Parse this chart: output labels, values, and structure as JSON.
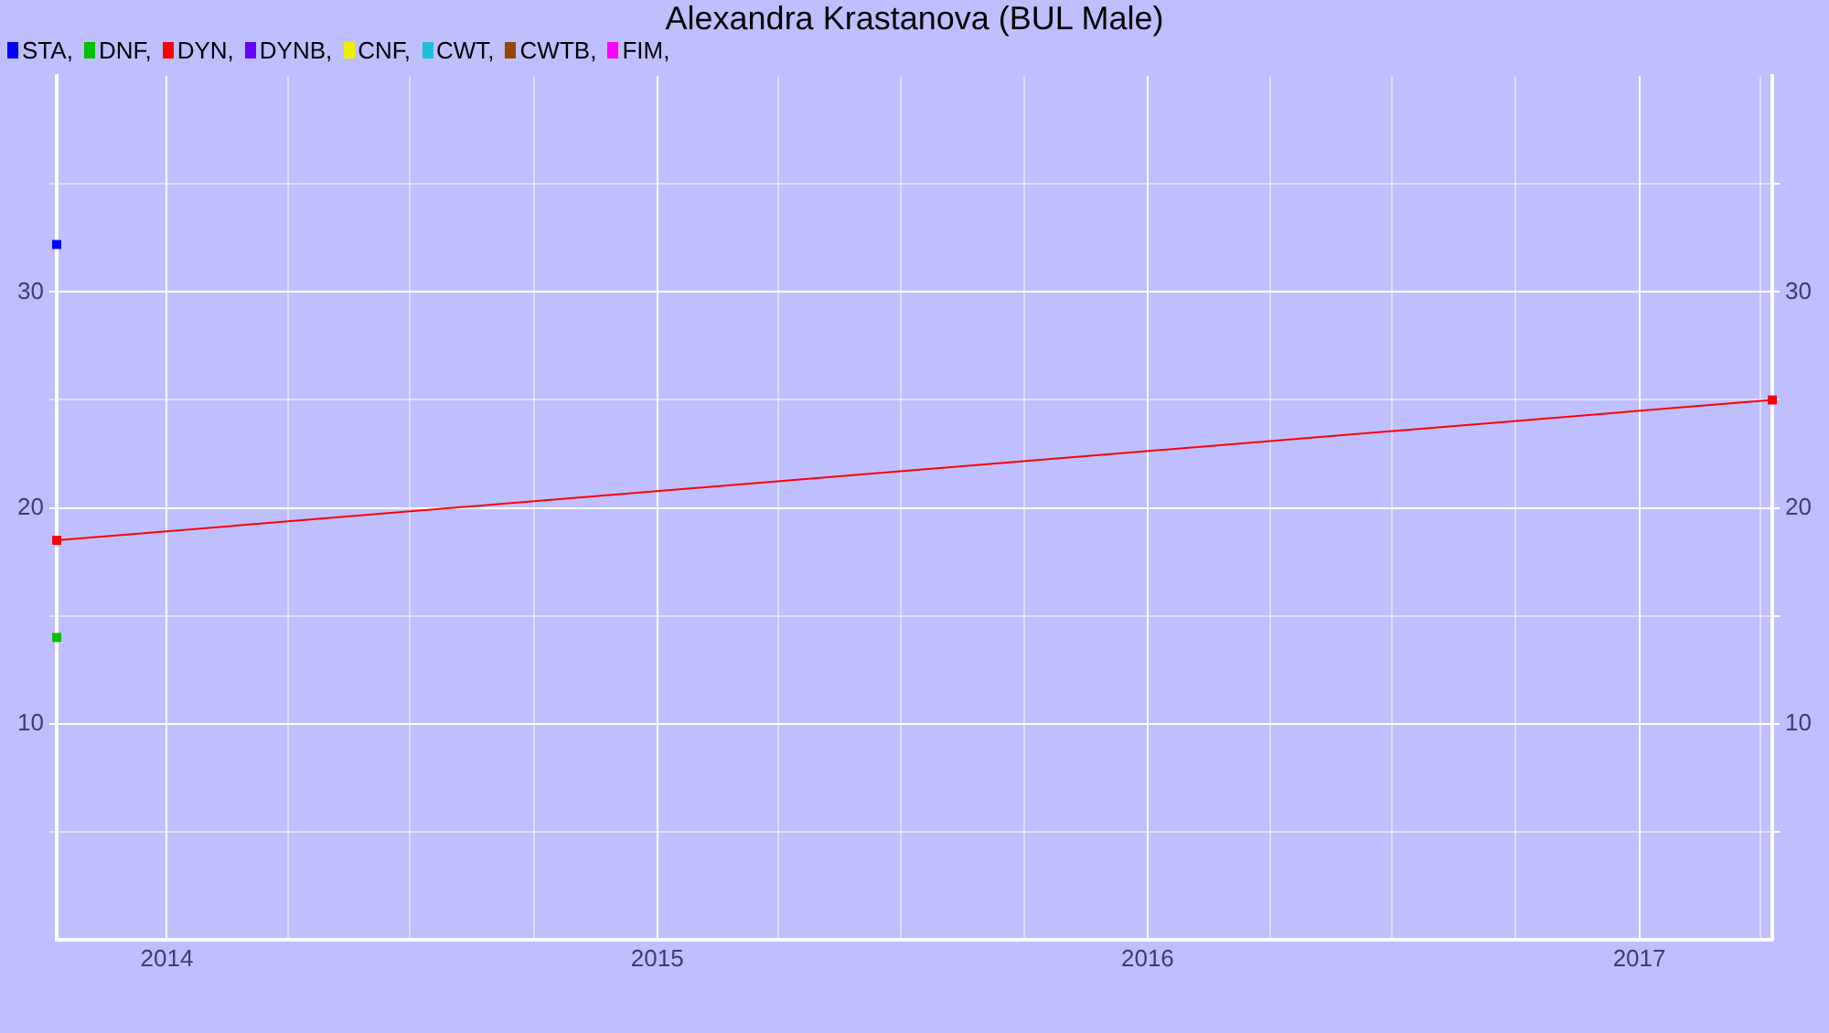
{
  "chart_data": {
    "type": "line",
    "title": "Alexandra Krastanova (BUL Male)",
    "legend": "top left",
    "marker": "square",
    "line_style": "solid",
    "grid": true,
    "xlim": [
      "2013-10-11",
      "2017-04-10"
    ],
    "xticks": [
      "2014",
      "2015",
      "2016",
      "2017",
      {
        "value": "2014-04",
        "label": null
      },
      {
        "value": "2014-07",
        "label": null
      },
      {
        "value": "2014-10",
        "label": null
      },
      {
        "value": "2015-04",
        "label": null
      },
      {
        "value": "2015-07",
        "label": null
      },
      {
        "value": "2015-10",
        "label": null
      },
      {
        "value": "2016-04",
        "label": null
      },
      {
        "value": "2016-07",
        "label": null
      },
      {
        "value": "2016-10",
        "label": null
      },
      {
        "value": "2017-04",
        "label": null
      }
    ],
    "ylim": [
      0,
      40
    ],
    "yticks": [
      10,
      20,
      30,
      {
        "value": 5,
        "label": null
      },
      {
        "value": 15,
        "label": null
      },
      {
        "value": 25,
        "label": null
      },
      {
        "value": 35,
        "label": null
      }
    ],
    "y2lim": [
      0,
      40
    ],
    "y2ticks": [
      10,
      20,
      30,
      {
        "value": 5,
        "label": null
      },
      {
        "value": 15,
        "label": null
      },
      {
        "value": 25,
        "label": null
      },
      {
        "value": 35,
        "label": null
      }
    ],
    "series": [
      {
        "name": "STA,",
        "color": "#0000ff",
        "x": [
          "2013-10-11"
        ],
        "values": [
          32.2
        ]
      },
      {
        "name": "DNF,",
        "color": "#00c000",
        "x": [
          "2013-10-11"
        ],
        "values": [
          14
        ]
      },
      {
        "name": "DYN,",
        "color": "#ff0000",
        "x": [
          "2013-10-11",
          "2017-04-10"
        ],
        "values": [
          18.5,
          25
        ]
      },
      {
        "name": "DYNB,",
        "color": "#6600ff"
      },
      {
        "name": "CNF,",
        "color": "#eeee00"
      },
      {
        "name": "CWT,",
        "color": "#1ec0d8"
      },
      {
        "name": "CWTB,",
        "color": "#994400"
      },
      {
        "name": "FIM,",
        "color": "#ff00ff"
      }
    ]
  }
}
